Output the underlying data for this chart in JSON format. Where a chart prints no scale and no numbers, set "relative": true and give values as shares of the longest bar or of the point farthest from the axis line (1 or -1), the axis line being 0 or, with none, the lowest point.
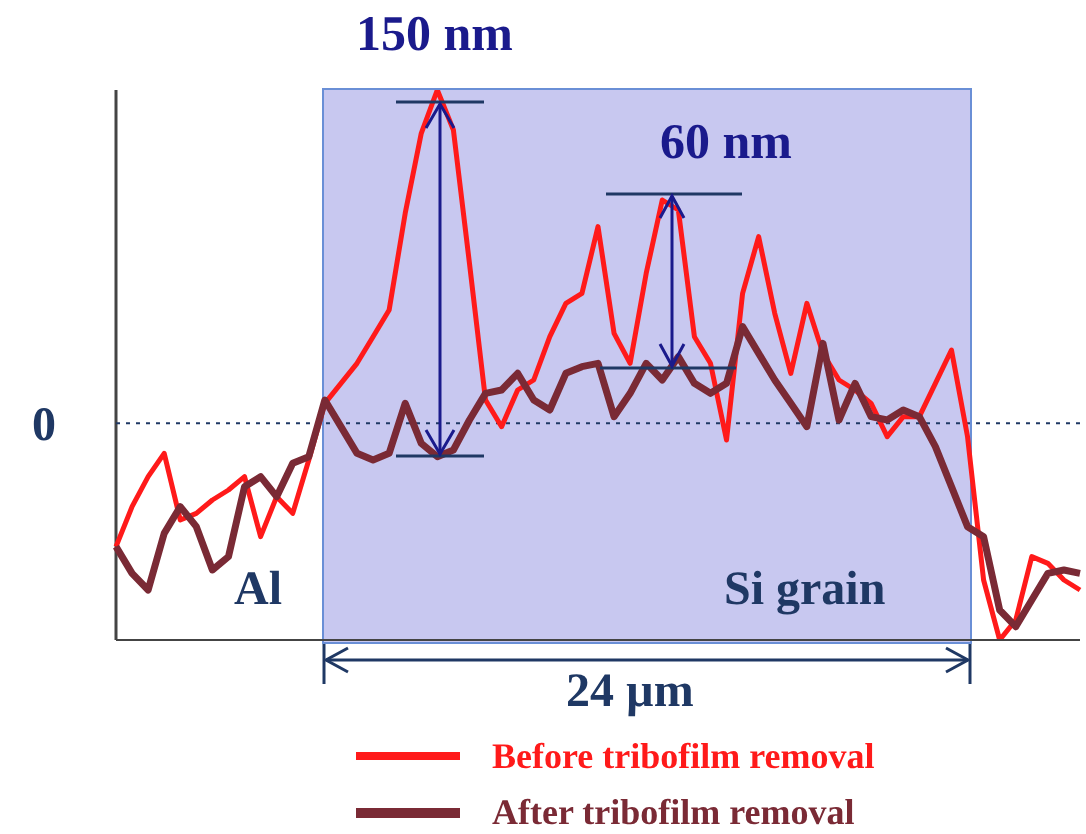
{
  "chart_data": {
    "type": "line",
    "relative": true,
    "categories": [
      null,
      null,
      null,
      null,
      null,
      null,
      null,
      null,
      null,
      null,
      null,
      null,
      null,
      null,
      null,
      null,
      null,
      null,
      null,
      null,
      null,
      null,
      null,
      null,
      null,
      null,
      null,
      null,
      null,
      null,
      null,
      null,
      null,
      null,
      null,
      null,
      null,
      null,
      null,
      null,
      null,
      null,
      null,
      null,
      null,
      null,
      null,
      null,
      null,
      null,
      null,
      null,
      null,
      null,
      null,
      null,
      null,
      null,
      null,
      null,
      null
    ],
    "series": [
      {
        "name": "Before tribofilm removal",
        "color": "#ff1a1a",
        "values": [
          -0.37,
          -0.25,
          -0.16,
          -0.09,
          -0.29,
          -0.27,
          -0.23,
          -0.2,
          -0.16,
          -0.34,
          -0.22,
          -0.27,
          -0.11,
          0.06,
          0.12,
          0.18,
          0.26,
          0.34,
          0.63,
          0.87,
          1,
          0.88,
          0.48,
          0.07,
          -0.01,
          0.1,
          0.13,
          0.26,
          0.36,
          0.39,
          0.59,
          0.27,
          0.18,
          0.45,
          0.67,
          0.64,
          0.26,
          0.18,
          -0.05,
          0.39,
          0.56,
          0.33,
          0.15,
          0.36,
          0.21,
          0.13,
          0.1,
          0.06,
          -0.04,
          0.02,
          0.02,
          0.12,
          0.22,
          -0.04,
          -0.47,
          -0.65,
          -0.59,
          -0.4,
          -0.42,
          -0.47,
          -0.5
        ]
      },
      {
        "name": "After tribofilm removal",
        "color": "#7a2a35",
        "values": [
          -0.37,
          -0.45,
          -0.5,
          -0.33,
          -0.25,
          -0.31,
          -0.44,
          -0.4,
          -0.19,
          -0.16,
          -0.22,
          -0.12,
          -0.1,
          0.07,
          -0.01,
          -0.09,
          -0.11,
          -0.09,
          0.06,
          -0.06,
          -0.1,
          -0.08,
          0.01,
          0.09,
          0.1,
          0.15,
          0.07,
          0.04,
          0.15,
          0.17,
          0.18,
          0.02,
          0.09,
          0.18,
          0.13,
          0.2,
          0.12,
          0.09,
          0.12,
          0.29,
          0.21,
          0.13,
          0.06,
          -0.01,
          0.24,
          0.01,
          0.12,
          0.02,
          0.01,
          0.04,
          0.02,
          -0.07,
          -0.19,
          -0.31,
          -0.34,
          -0.56,
          -0.61,
          -0.53,
          -0.45,
          -0.44,
          -0.45
        ]
      }
    ],
    "ref_lines": [
      {
        "axis": "y",
        "value": 0,
        "label": "0",
        "color": "#1f3864",
        "line_style": "dotted"
      }
    ],
    "annotations": [
      "150 nm",
      "60 nm",
      "Al",
      "Si grain",
      "24 µm"
    ],
    "legend": "bottom",
    "marker": "none",
    "line_style": "solid"
  }
}
